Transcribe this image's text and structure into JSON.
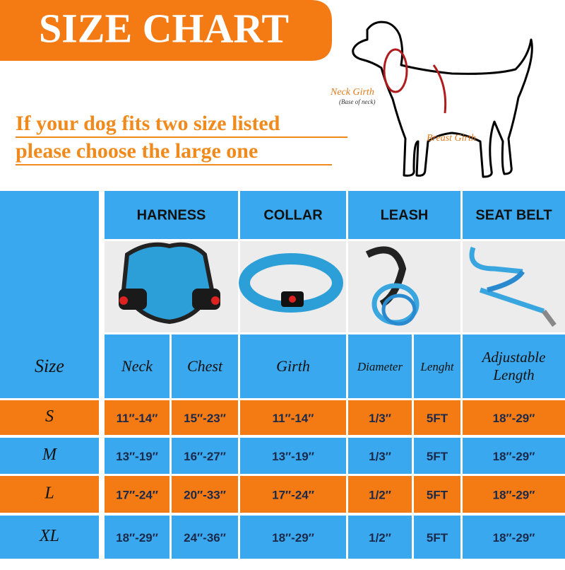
{
  "header": {
    "title": "SIZE CHART",
    "note_lines": [
      "If your dog fits two size listed",
      "please choose the large one"
    ]
  },
  "diagram": {
    "neck_girth": "Neck Girth",
    "neck_note": "(Base of neck)",
    "breast_girth": "Breast Girth"
  },
  "table": {
    "products": [
      "HARNESS",
      "COLLAR",
      "LEASH",
      "SEAT BELT"
    ],
    "columns": [
      "Size",
      "Neck",
      "Chest",
      "Girth",
      "Diameter",
      "Lenght",
      "Adjustable Length"
    ],
    "rows": [
      [
        "S",
        "11″-14″",
        "15″-23″",
        "11″-14″",
        "1/3″",
        "5FT",
        "18″-29″"
      ],
      [
        "M",
        "13″-19″",
        "16″-27″",
        "13″-19″",
        "1/3″",
        "5FT",
        "18″-29″"
      ],
      [
        "L",
        "17″-24″",
        "20″-33″",
        "17″-24″",
        "1/2″",
        "5FT",
        "18″-29″"
      ],
      [
        "XL",
        "18″-29″",
        "24″-36″",
        "18″-29″",
        "1/2″",
        "5FT",
        "18″-29″"
      ]
    ]
  }
}
